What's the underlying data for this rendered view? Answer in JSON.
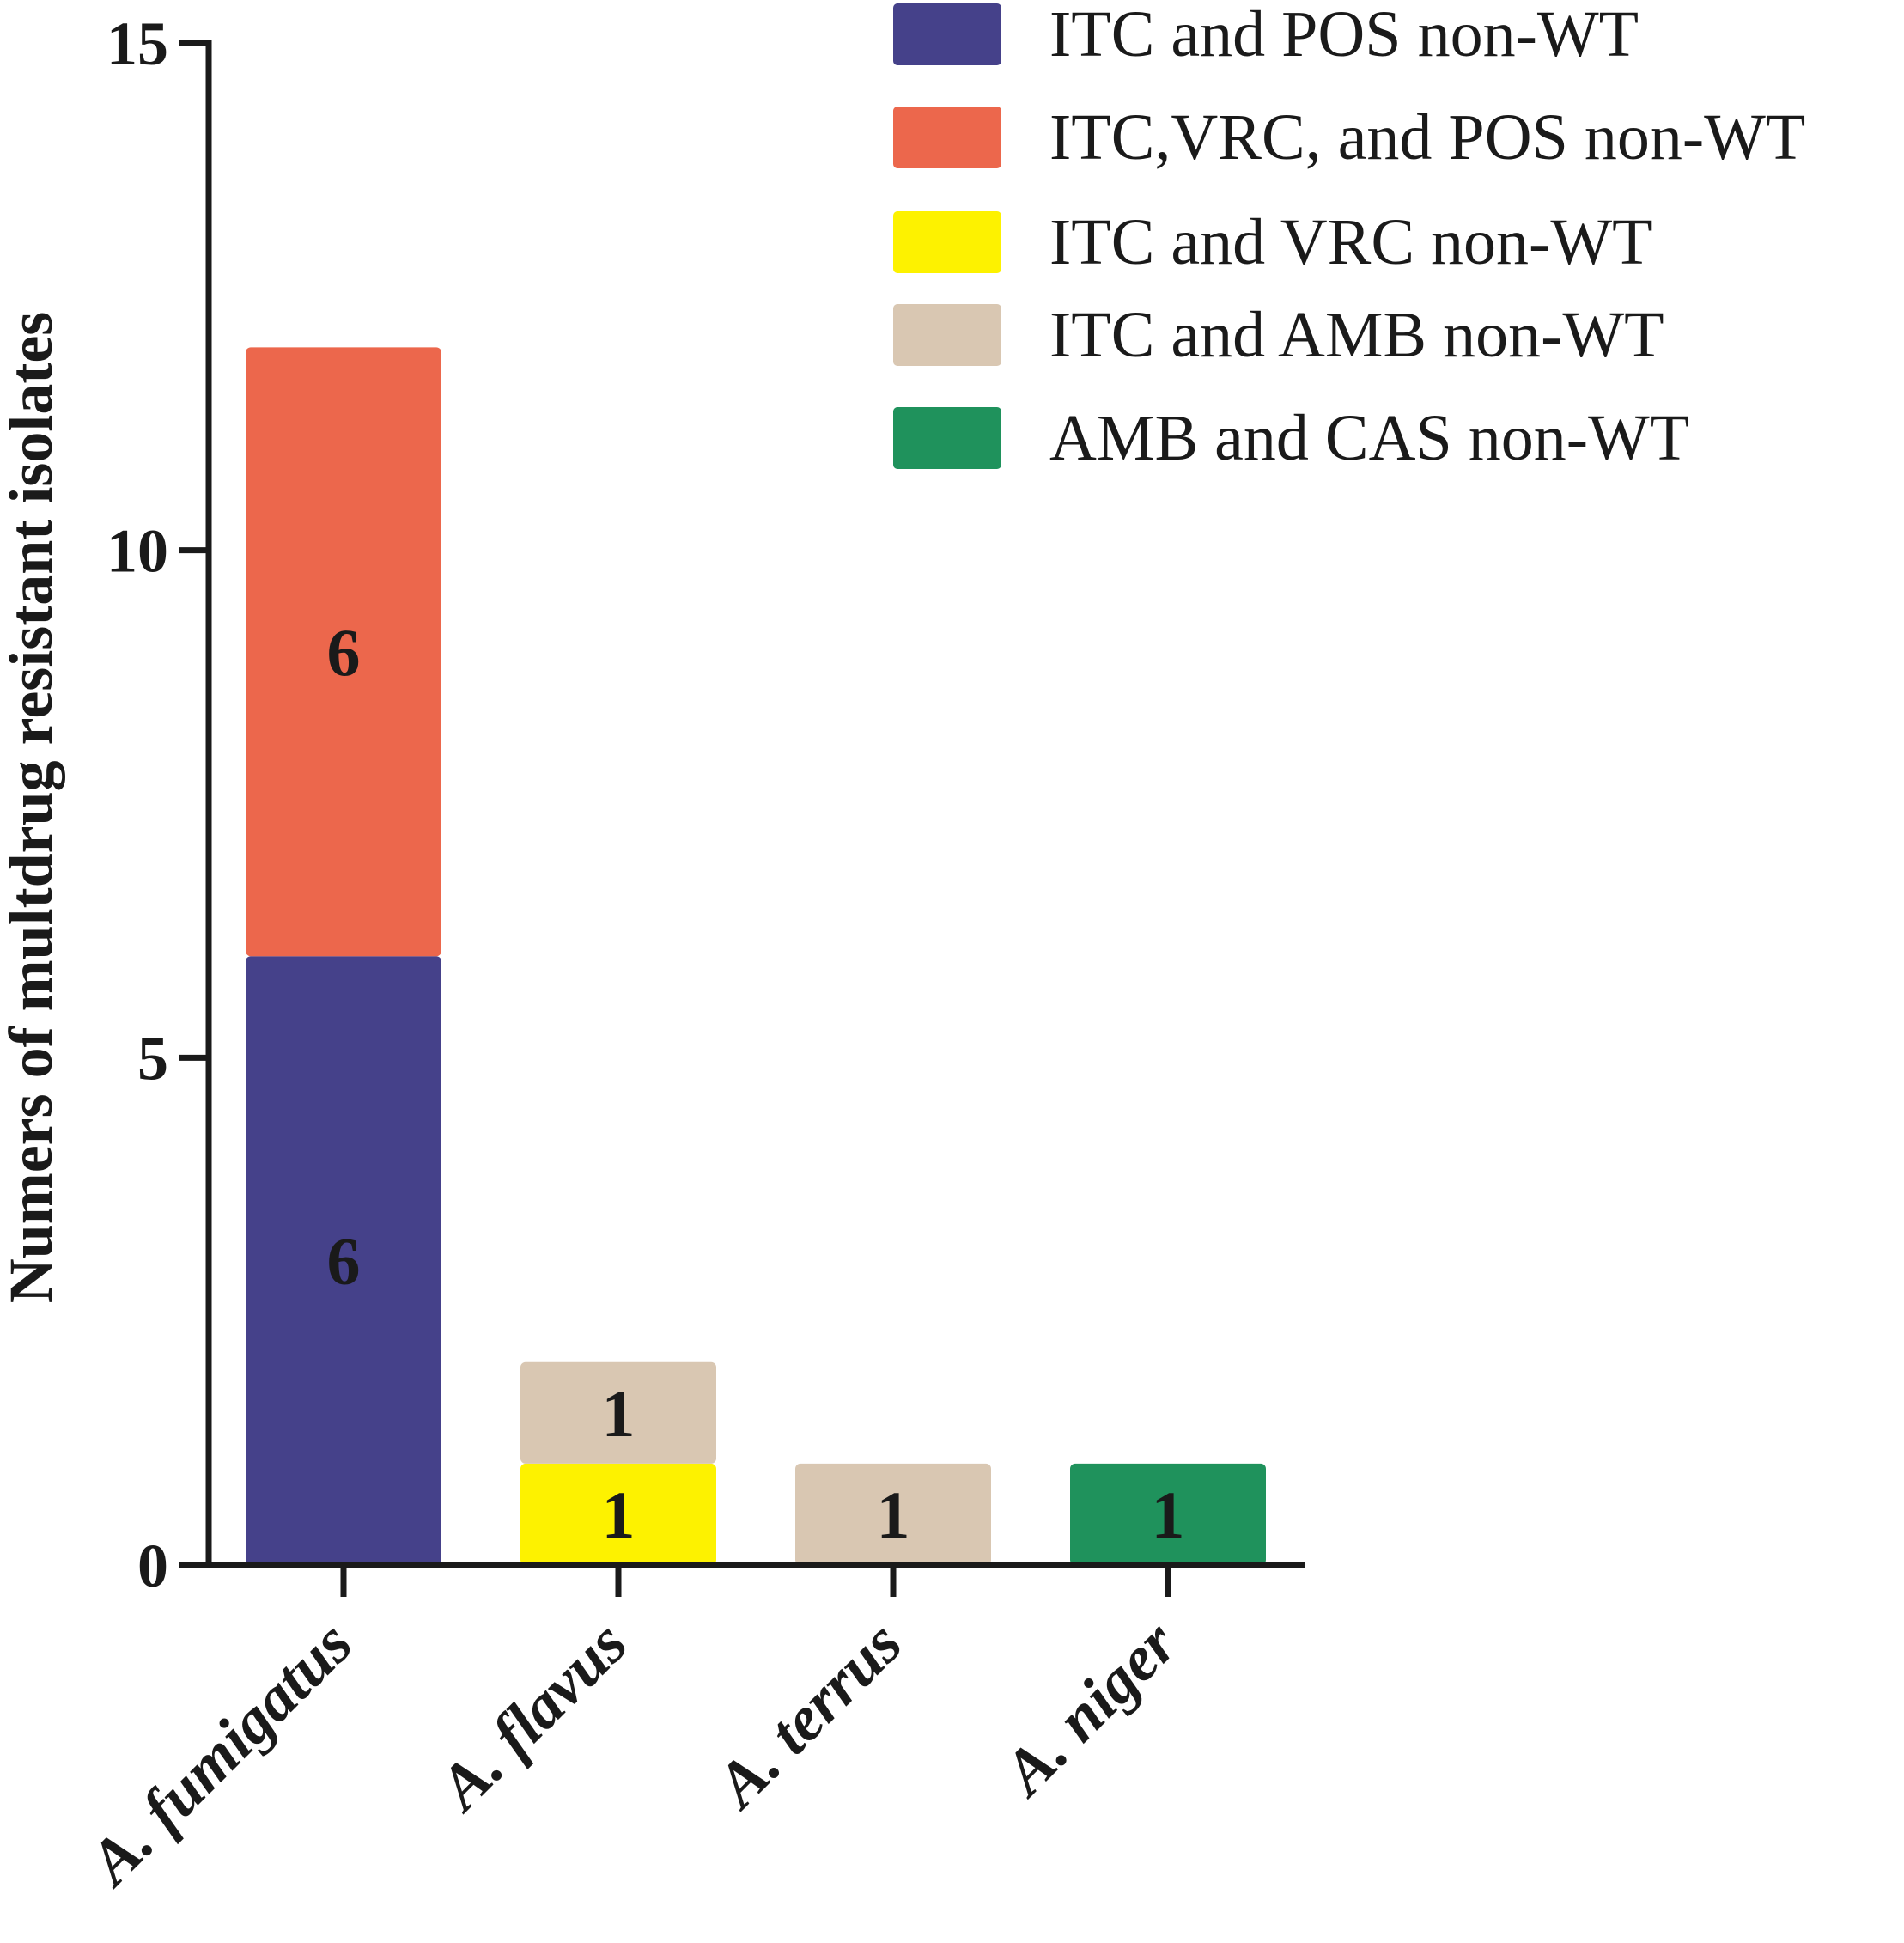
{
  "chart_data": {
    "type": "bar",
    "stacked": true,
    "title": "",
    "xlabel": "",
    "ylabel": "Numers of multdrug resistant isolates",
    "ylim": [
      0,
      15
    ],
    "yticks": [
      0,
      5,
      10,
      15
    ],
    "categories": [
      "A. fumigatus",
      "A. flavus",
      "A. terrus",
      "A. niger"
    ],
    "legend_position": "top-right",
    "grid": false,
    "series": [
      {
        "name": "ITC and POS non-WT",
        "color": "#45418a",
        "values": [
          6,
          0,
          0,
          0
        ]
      },
      {
        "name": "ITC,VRC, and POS non-WT",
        "color": "#ec674c",
        "values": [
          6,
          0,
          0,
          0
        ]
      },
      {
        "name": "ITC and VRC non-WT",
        "color": "#fdf200",
        "values": [
          0,
          1,
          0,
          0
        ]
      },
      {
        "name": "ITC and AMB non-WT",
        "color": "#d9c7b2",
        "values": [
          0,
          1,
          1,
          0
        ]
      },
      {
        "name": "AMB and CAS non-WT",
        "color": "#1f925c",
        "values": [
          0,
          0,
          0,
          1
        ]
      }
    ]
  }
}
